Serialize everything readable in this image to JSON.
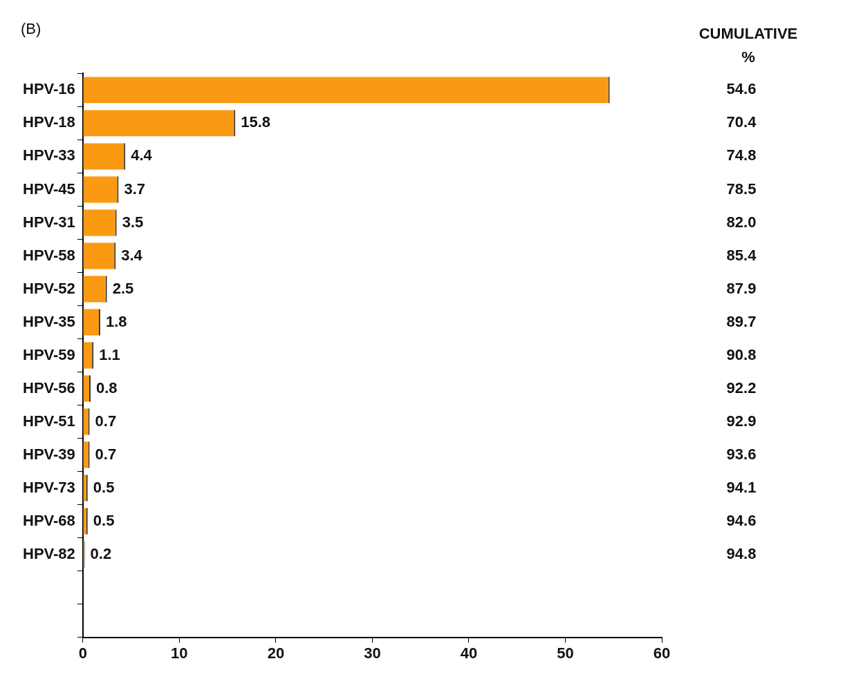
{
  "chart_data": {
    "type": "bar",
    "orientation": "horizontal",
    "title": "(B)",
    "categories": [
      "HPV-16",
      "HPV-18",
      "HPV-33",
      "HPV-45",
      "HPV-31",
      "HPV-58",
      "HPV-52",
      "HPV-35",
      "HPV-59",
      "HPV-56",
      "HPV-51",
      "HPV-39",
      "HPV-73",
      "HPV-68",
      "HPV-82",
      null,
      null
    ],
    "values": [
      54.6,
      15.8,
      4.4,
      3.7,
      3.5,
      3.4,
      2.5,
      1.8,
      1.1,
      0.8,
      0.7,
      0.7,
      0.5,
      0.5,
      0.2,
      null,
      null
    ],
    "value_labels": [
      null,
      "15.8",
      "4.4",
      "3.7",
      "3.5",
      "3.4",
      "2.5",
      "1.8",
      "1.1",
      "0.8",
      "0.7",
      "0.7",
      "0.5",
      "0.5",
      "0.2",
      null,
      null
    ],
    "color": "#f99a12",
    "xlim": [
      0,
      60
    ],
    "xticks": [
      0,
      10,
      20,
      30,
      40,
      50,
      60
    ],
    "annotations": [
      "CUMULATIVE %",
      "54.6",
      "70.4",
      "74.8",
      "78.5",
      "82.0",
      "85.4",
      "87.9",
      "89.7",
      "90.8",
      "92.2",
      "92.9",
      "93.6",
      "94.1",
      "94.6",
      "94.8"
    ]
  }
}
